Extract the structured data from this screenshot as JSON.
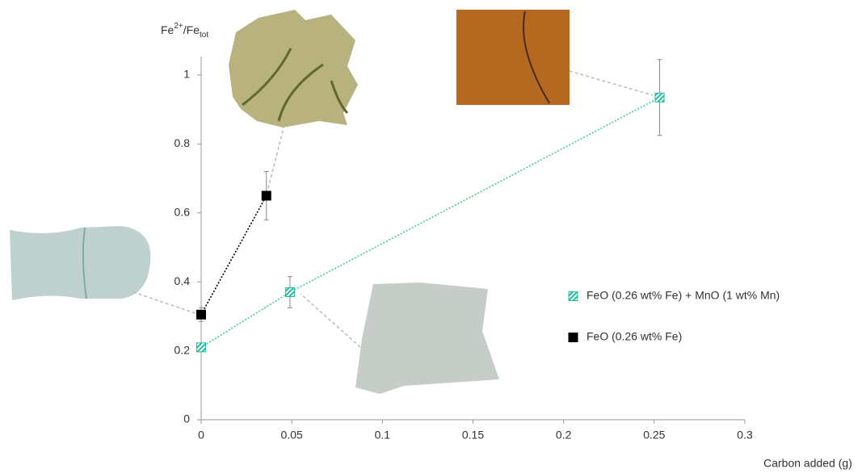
{
  "chart_data": {
    "type": "scatter",
    "ylabel": {
      "base": "Fe",
      "sup": "2+",
      "mid": "/Fe",
      "sub": "tot"
    },
    "xlabel": "Carbon added (g)",
    "xlim": [
      0,
      0.3
    ],
    "xticks": [
      0,
      0.05,
      0.1,
      0.15,
      0.2,
      0.25,
      0.3
    ],
    "ylim": [
      0,
      1.05
    ],
    "yticks": [
      0,
      0.2,
      0.4,
      0.6,
      0.8,
      1
    ],
    "series": [
      {
        "name": "FeO (0.26 wt% Fe) + MnO (1 wt% Mn)",
        "color": "#1dbf9a",
        "marker": "hatched",
        "x": [
          0,
          0.049,
          0.253
        ],
        "values": [
          0.21,
          0.37,
          0.935
        ],
        "errors": [
          0.01,
          0.045,
          0.11
        ]
      },
      {
        "name": "FeO (0.26 wt% Fe)",
        "color": "#000000",
        "marker": "filled",
        "x": [
          0,
          0.036
        ],
        "values": [
          0.305,
          0.65
        ],
        "errors": [
          0.02,
          0.07
        ]
      }
    ]
  }
}
